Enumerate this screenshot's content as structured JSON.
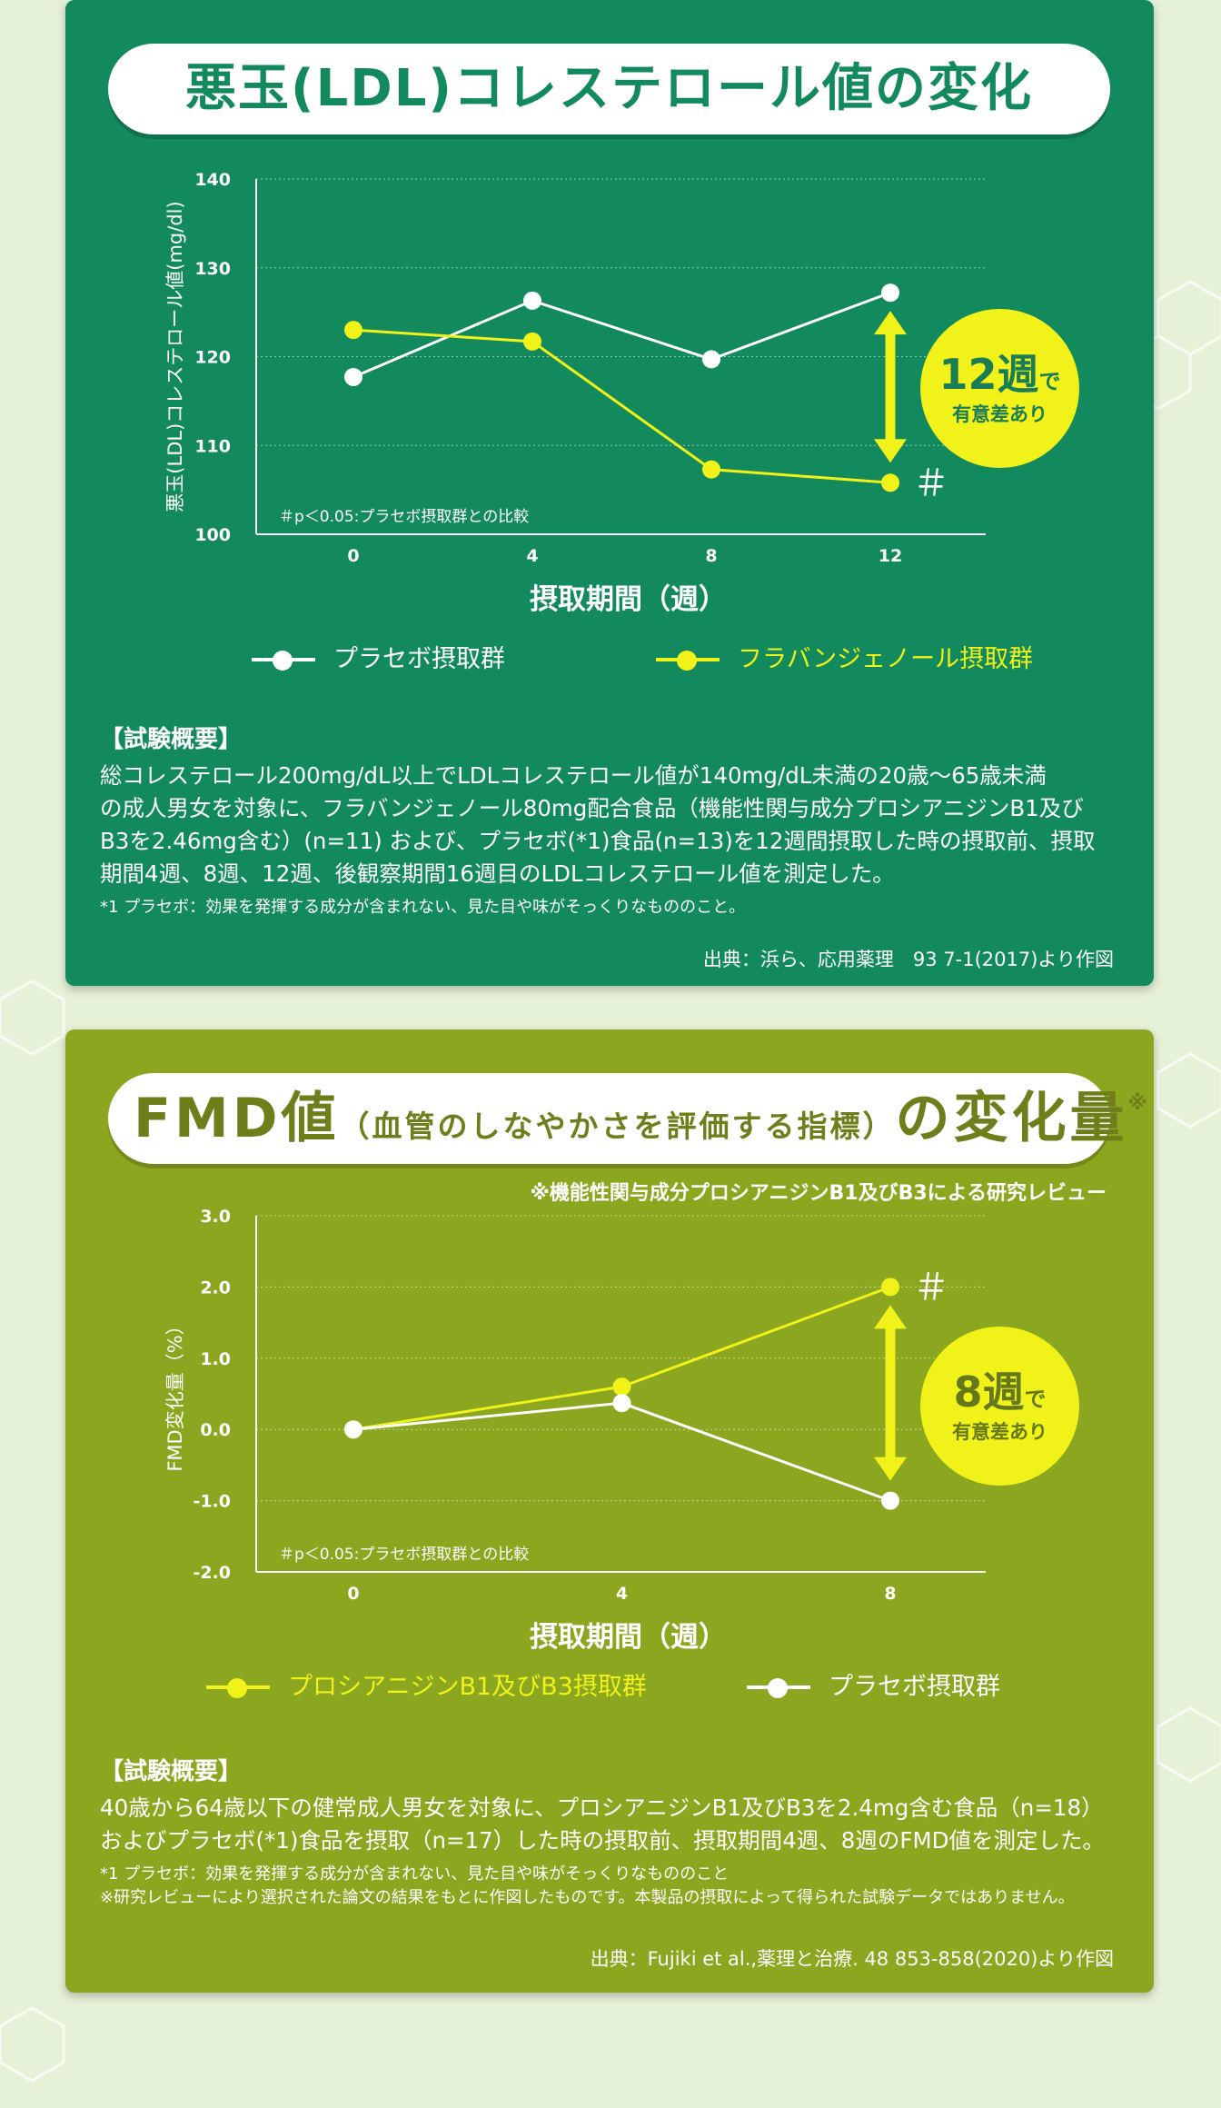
{
  "section1": {
    "title": "悪玉(LDL)コレステロール値の変化",
    "badge": {
      "main": "12週",
      "suffix": "で",
      "sub": "有意差あり"
    },
    "hash": "＃",
    "footnote": "＃p＜0.05:プラセボ摂取群との比較",
    "legend": [
      {
        "label": "プラセボ摂取群",
        "color": "#ffffff"
      },
      {
        "label": "フラバンジェノール摂取群",
        "color": "#f0f21a"
      }
    ],
    "summary_heading": "【試験概要】",
    "summary_body": "総コレステロール200mg/dL以上でLDLコレステロール値が140mg/dL未満の20歳〜65歳未満\nの成人男女を対象に、フラバンジェノール80mg配合食品（機能性関与成分プロシアニジンB1及び\nB3を2.46mg含む）(n=11) および、プラセボ(*1)食品(n=13)を12週間摂取した時の摂取前、摂取\n期間4週、8週、12週、後観察期間16週目のLDLコレステロール値を測定した。",
    "summary_note": "*1 プラセボ：効果を発揮する成分が含まれない、見た目や味がそっくりなもののこと。",
    "source": "出典：浜ら、応用薬理　93 7-1(2017)より作図"
  },
  "section2": {
    "title_big1": "FMD値",
    "title_small": "（血管のしなやかさを評価する指標）",
    "title_big2": "の変化量",
    "title_note": "※",
    "review_note": "※機能性関与成分プロシアニジンB1及びB3による研究レビュー",
    "badge": {
      "main": "8週",
      "suffix": "で",
      "sub": "有意差あり"
    },
    "hash": "＃",
    "footnote": "＃p＜0.05:プラセボ摂取群との比較",
    "legend": [
      {
        "label": "プロシアニジンB1及びB3摂取群",
        "color": "#f0f21a"
      },
      {
        "label": "プラセボ摂取群",
        "color": "#ffffff"
      }
    ],
    "summary_heading": "【試験概要】",
    "summary_body": "40歳から64歳以下の健常成人男女を対象に、プロシアニジンB1及びB3を2.4mg含む食品（n=18）\nおよびプラセボ(*1)食品を摂取（n=17）した時の摂取前、摂取期間4週、8週のFMD値を測定した。",
    "summary_note": "*1 プラセボ：効果を発揮する成分が含まれない、見た目や味がそっくりなもののこと\n※研究レビューにより選択された論文の結果をもとに作図したものです。本製品の摂取によって得られた試験データではありません。",
    "source": "出典：Fujiki et al.,薬理と治療. 48 853-858(2020)より作図"
  },
  "chart_data": [
    {
      "type": "line",
      "title": "悪玉(LDL)コレステロール値の変化",
      "xlabel": "摂取期間（週）",
      "ylabel": "悪玉(LDL)コレステロール値(mg/dl)",
      "x": [
        0,
        4,
        8,
        12
      ],
      "xticks": [
        "0",
        "4",
        "8",
        "12"
      ],
      "ylim": [
        100,
        140
      ],
      "yticks": [
        "100",
        "110",
        "120",
        "130",
        "140"
      ],
      "grid": "horizontal dotted",
      "series": [
        {
          "name": "プラセボ摂取群",
          "color": "#ffffff",
          "values": [
            117.7,
            126.3,
            119.7,
            127.2
          ]
        },
        {
          "name": "フラバンジェノール摂取群",
          "color": "#f0f21a",
          "values": [
            123.0,
            121.7,
            107.3,
            105.8
          ]
        }
      ]
    },
    {
      "type": "line",
      "title": "FMD値（血管のしなやかさを評価する指標）の変化量",
      "xlabel": "摂取期間（週）",
      "ylabel": "FMD変化量（%）",
      "x": [
        0,
        4,
        8
      ],
      "xticks": [
        "0",
        "4",
        "8"
      ],
      "ylim": [
        -2.0,
        3.0
      ],
      "yticks": [
        "-2.0",
        "-1.0",
        "0.0",
        "1.0",
        "2.0",
        "3.0"
      ],
      "grid": "horizontal dotted",
      "series": [
        {
          "name": "プロシアニジンB1及びB3摂取群",
          "color": "#f0f21a",
          "values": [
            0.0,
            0.6,
            2.0
          ]
        },
        {
          "name": "プラセボ摂取群",
          "color": "#ffffff",
          "values": [
            0.0,
            0.37,
            -1.0
          ]
        }
      ]
    }
  ]
}
